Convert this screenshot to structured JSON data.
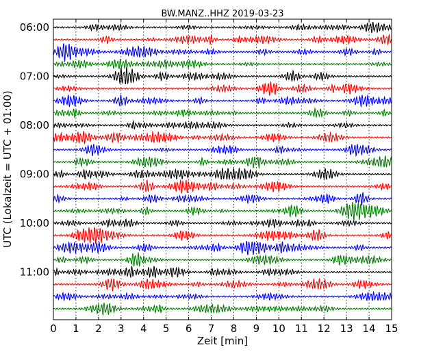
{
  "chart_data": {
    "type": "line",
    "title": "BW.MANZ..HHZ 2019-03-23",
    "xlabel": "Zeit  [min]",
    "ylabel": "UTC (Lokalzeit = UTC + 01:00)",
    "xlim": [
      0,
      15
    ],
    "x_ticks": [
      "0",
      "1",
      "2",
      "3",
      "4",
      "5",
      "6",
      "7",
      "8",
      "9",
      "10",
      "11",
      "12",
      "13",
      "14",
      "15"
    ],
    "y_tick_labels": [
      "06:00",
      "07:00",
      "08:00",
      "09:00",
      "10:00",
      "11:00"
    ],
    "trace_minutes": 15,
    "trace_start": "06:00",
    "trace_count": 24,
    "trace_colors": [
      "#000000",
      "#ff0000",
      "#0000ff",
      "#008000"
    ],
    "grid": "vertical dotted lines at each minute"
  }
}
